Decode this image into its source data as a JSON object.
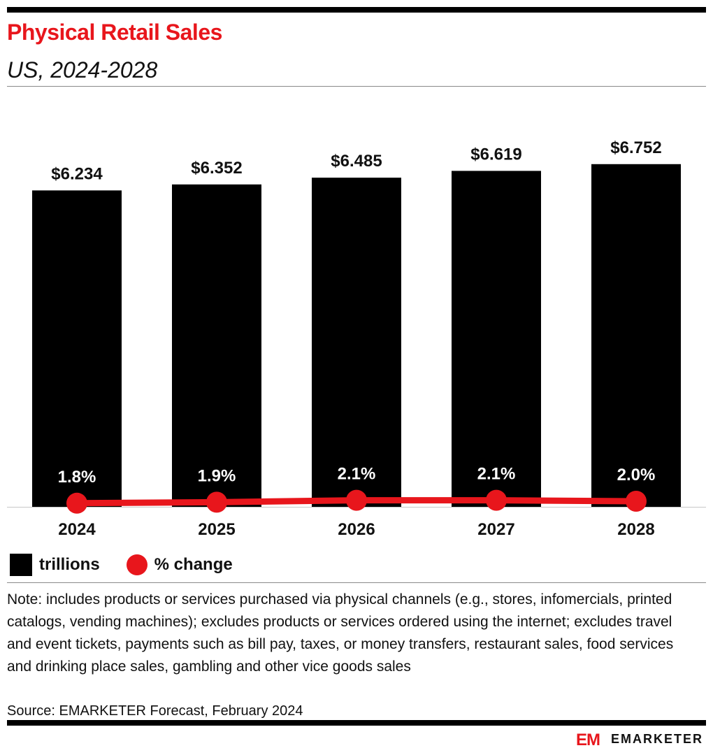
{
  "header": {
    "title": "Physical Retail Sales",
    "subtitle": "US, 2024-2028"
  },
  "colors": {
    "title": "#e8161c",
    "bars": "#000000",
    "line": "#e8161c"
  },
  "legend": {
    "bars_label": "trillions",
    "line_label": "% change"
  },
  "chart_data": {
    "type": "bar",
    "categories": [
      "2024",
      "2025",
      "2026",
      "2027",
      "2028"
    ],
    "series": [
      {
        "name": "trillions",
        "type": "bar",
        "values": [
          6.234,
          6.352,
          6.485,
          6.619,
          6.752
        ],
        "labels": [
          "$6.234",
          "$6.352",
          "$6.485",
          "$6.619",
          "$6.752"
        ]
      },
      {
        "name": "% change",
        "type": "line",
        "values": [
          1.8,
          1.9,
          2.1,
          2.1,
          2.0
        ],
        "labels": [
          "1.8%",
          "1.9%",
          "2.1%",
          "2.1%",
          "2.0%"
        ]
      }
    ],
    "ylim": [
      0,
      7.3
    ],
    "grid": false,
    "legend_position": "bottom-left"
  },
  "footer": {
    "note": "Note: includes products or services purchased via physical channels (e.g., stores, infomercials, printed catalogs, vending machines); excludes products or services ordered using the internet; excludes travel and event tickets, payments such as bill pay, taxes, or money transfers, restaurant sales, food services and drinking place sales, gambling and other vice goods sales",
    "source": "Source: EMARKETER Forecast, February 2024",
    "brand": "EMARKETER",
    "logo_text": "EM"
  }
}
